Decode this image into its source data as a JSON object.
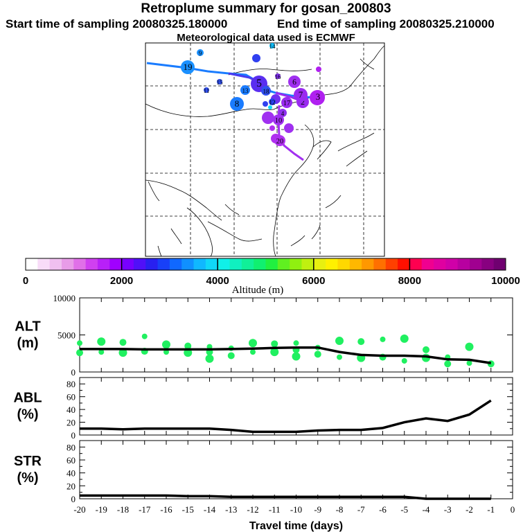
{
  "header": {
    "title": "Retroplume summary for gosan_200803",
    "start": "Start time of sampling 20080325.180000",
    "end": "End time of sampling 20080325.210000",
    "met": "Meteorological data used is ECMWF"
  },
  "colorbar": {
    "ticks": [
      "0",
      "2000",
      "4000",
      "6000",
      "8000",
      "10000"
    ],
    "label": "Altitude (m)",
    "colors": [
      "#ffffff",
      "#f8dcf8",
      "#f0c0f0",
      "#e89ce8",
      "#e070e8",
      "#d040f0",
      "#b820f8",
      "#a000ff",
      "#7800ff",
      "#5010f8",
      "#2820f0",
      "#1840f8",
      "#1068ff",
      "#1090ff",
      "#10b8ff",
      "#10d8f8",
      "#10f0e8",
      "#10f0c0",
      "#10f098",
      "#10f070",
      "#20f040",
      "#60f020",
      "#90f010",
      "#c0f010",
      "#e8f010",
      "#fff000",
      "#ffd800",
      "#ffb800",
      "#ff9800",
      "#ff7000",
      "#ff4000",
      "#ff1000",
      "#ff0050",
      "#f00090",
      "#e000a0",
      "#d000a8",
      "#b800a0",
      "#a00090",
      "#880080",
      "#700070"
    ]
  },
  "map": {
    "trajectory_labels": [
      "1",
      "2",
      "3",
      "4",
      "5",
      "6",
      "7",
      "8",
      "9",
      "10",
      "11",
      "12",
      "13",
      "14",
      "15",
      "16",
      "17",
      "18",
      "19",
      "20"
    ]
  },
  "chart_data": [
    {
      "type": "line",
      "panel": "ALT",
      "ylabel": "ALT\n(m)",
      "ylabel_lines": [
        "ALT",
        "(m)"
      ],
      "ylim": [
        0,
        10000
      ],
      "yticks": [
        "10000",
        "5000",
        "0"
      ],
      "x": [
        -20,
        -19,
        -18,
        -17,
        -16,
        -15,
        -14,
        -13,
        -12,
        -11,
        -10,
        -9,
        -8,
        -7,
        -6,
        -5,
        -4,
        -3,
        -2,
        -1
      ],
      "series": [
        {
          "name": "mean altitude",
          "values": [
            3100,
            3100,
            3100,
            3050,
            3050,
            3050,
            3050,
            3100,
            3150,
            3250,
            3300,
            3300,
            2700,
            2300,
            2200,
            2200,
            2100,
            1700,
            1650,
            1200
          ]
        }
      ],
      "scatter": {
        "x": [
          -20,
          -20,
          -19,
          -19,
          -18,
          -18,
          -17,
          -17,
          -16,
          -16,
          -15,
          -15,
          -14,
          -14,
          -14,
          -13,
          -13,
          -12,
          -12,
          -11,
          -11,
          -10,
          -10,
          -10,
          -9,
          -9,
          -8,
          -8,
          -7,
          -7,
          -6,
          -6,
          -5,
          -5,
          -4,
          -4,
          -3,
          -3,
          -2,
          -2,
          -1
        ],
        "y": [
          3900,
          2600,
          4100,
          2700,
          4000,
          2600,
          4800,
          2800,
          3700,
          2700,
          3500,
          2600,
          3400,
          2700,
          1800,
          3200,
          2200,
          3900,
          2700,
          3800,
          2700,
          3900,
          3000,
          2100,
          3300,
          2400,
          4200,
          2000,
          4100,
          1900,
          4400,
          2000,
          4500,
          1500,
          3000,
          1900,
          2000,
          1100,
          3400,
          1200,
          1100
        ]
      },
      "xlabel": ""
    },
    {
      "type": "line",
      "panel": "ABL",
      "ylabel_lines": [
        "ABL",
        "(%)"
      ],
      "ylim": [
        0,
        90
      ],
      "yticks": [
        "80",
        "60",
        "40",
        "20",
        "0"
      ],
      "x": [
        -20,
        -19,
        -18,
        -17,
        -16,
        -15,
        -14,
        -13,
        -12,
        -11,
        -10,
        -9,
        -8,
        -7,
        -6,
        -5,
        -4,
        -3,
        -2,
        -1
      ],
      "series": [
        {
          "name": "fraction in ABL",
          "values": [
            10,
            10,
            9,
            10,
            10,
            10,
            10,
            8,
            5,
            5,
            5,
            7,
            8,
            8,
            11,
            20,
            26,
            22,
            32,
            54
          ]
        }
      ]
    },
    {
      "type": "line",
      "panel": "STR",
      "ylabel_lines": [
        "STR",
        "(%)"
      ],
      "ylim": [
        0,
        90
      ],
      "yticks": [
        "80",
        "60",
        "40",
        "20",
        "0"
      ],
      "x": [
        -20,
        -19,
        -18,
        -17,
        -16,
        -15,
        -14,
        -13,
        -12,
        -11,
        -10,
        -9,
        -8,
        -7,
        -6,
        -5,
        -4,
        -3,
        -2,
        -1
      ],
      "xticks": [
        "-20",
        "-19",
        "-18",
        "-17",
        "-16",
        "-15",
        "-14",
        "-13",
        "-12",
        "-11",
        "-10",
        "-9",
        "-8",
        "-7",
        "-6",
        "-5",
        "-4",
        "-3",
        "-2",
        "-1",
        "0"
      ],
      "xlabel": "Travel time (days)",
      "series": [
        {
          "name": "fraction in stratosphere",
          "values": [
            5,
            5,
            5,
            5,
            5,
            4,
            4,
            3,
            3,
            3,
            3,
            3,
            3,
            3,
            3,
            3,
            0,
            0,
            0,
            0
          ]
        }
      ]
    }
  ]
}
